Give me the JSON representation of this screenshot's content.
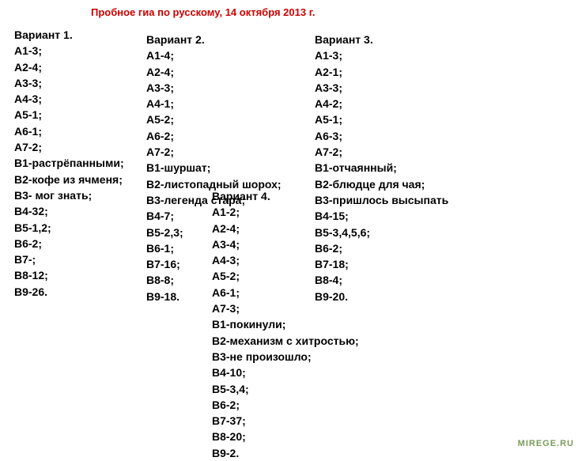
{
  "title": "Пробное гиа по русскому, 14 октября 2013 г.",
  "watermark": "MIREGE.RU",
  "variants": {
    "v1": {
      "header": "Вариант 1.",
      "rows": [
        "А1-3;",
        "А2-4;",
        "А3-3;",
        "А4-3;",
        "А5-1;",
        "А6-1;",
        "А7-2;",
        "В1-растрёпанными;",
        "В2-кофе из ячменя;",
        "В3- мог знать;",
        "В4-32;",
        "В5-1,2;",
        "В6-2;",
        "В7-;",
        "В8-12;",
        "В9-26."
      ]
    },
    "v2": {
      "header": "Вариант 2.",
      "rows": [
        "А1-4;",
        "А2-4;",
        "А3-3;",
        "А4-1;",
        "А5-2;",
        "А6-2;",
        "А7-2;",
        "В1-шуршат;",
        "В2-листопадный шорох;",
        "В3-легенда стара;",
        "В4-7;",
        "В5-2,3;",
        "В6-1;",
        "В7-16;",
        "В8-8;",
        "В9-18."
      ]
    },
    "v3": {
      "header": "Вариант 3.",
      "rows": [
        "А1-3;",
        "А2-1;",
        "А3-3;",
        "А4-2;",
        "А5-1;",
        "А6-3;",
        "А7-2;",
        "В1-отчаянный;",
        "В2-блюдце для чая;",
        "В3-пришлось высыпать",
        "В4-15;",
        "В5-3,4,5,6;",
        "В6-2;",
        "В7-18;",
        "В8-4;",
        "В9-20."
      ]
    },
    "v4": {
      "header": "Вариант 4.",
      "rows": [
        "А1-2;",
        "А2-4;",
        "А3-4;",
        "А4-3;",
        "А5-2;",
        "А6-1;",
        "А7-3;",
        "В1-покинули;",
        "В2-механизм с хитростью;",
        "В3-не произошло;",
        "В4-10;",
        "В5-3,4;",
        "В6-2;",
        "В7-37;",
        "В8-20;",
        "В9-2."
      ]
    }
  }
}
